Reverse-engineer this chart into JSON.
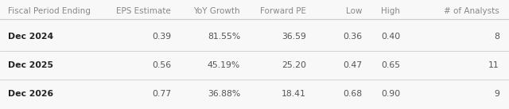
{
  "columns": [
    "Fiscal Period Ending",
    "EPS Estimate",
    "YoY Growth",
    "Forward PE",
    "Low",
    "High",
    "# of Analysts"
  ],
  "rows": [
    [
      "Dec 2024",
      "0.39",
      "81.55%",
      "36.59",
      "0.36",
      "0.40",
      "8"
    ],
    [
      "Dec 2025",
      "0.56",
      "45.19%",
      "25.20",
      "0.47",
      "0.65",
      "11"
    ],
    [
      "Dec 2026",
      "0.77",
      "36.88%",
      "18.41",
      "0.68",
      "0.90",
      "9"
    ]
  ],
  "header_text_color": "#888888",
  "row_label_color": "#222222",
  "row_value_color": "#555555",
  "background_color": "#f8f8f8",
  "line_color": "#cccccc",
  "col_alignments": [
    "left",
    "right",
    "right",
    "right",
    "right",
    "right",
    "right"
  ],
  "header_font_size": 7.5,
  "row_font_size": 7.8,
  "fig_width": 6.4,
  "fig_height": 1.37,
  "dpi": 100
}
